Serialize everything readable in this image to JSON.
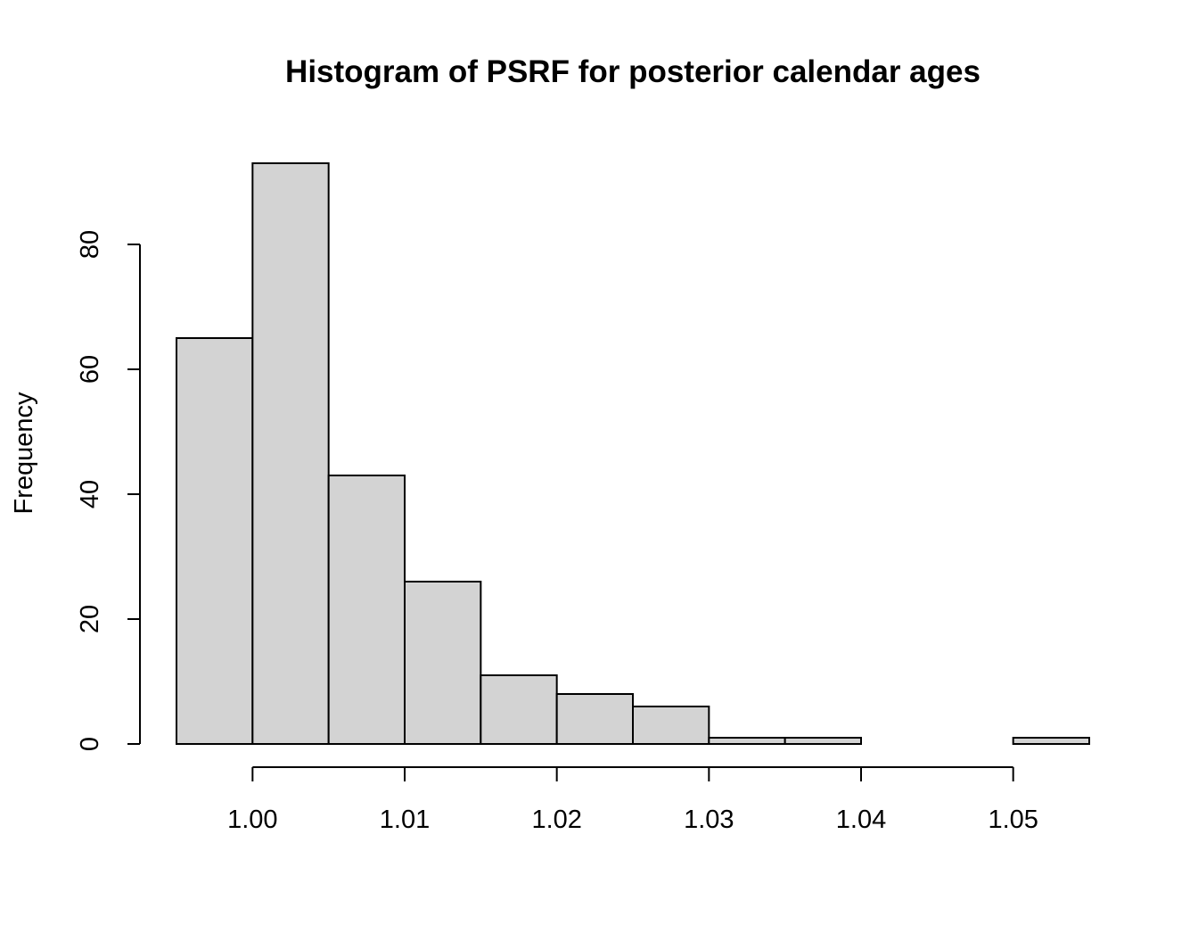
{
  "chart_data": {
    "type": "bar",
    "title": "Histogram of PSRF for posterior calendar ages",
    "xlabel": "",
    "ylabel": "Frequency",
    "bin_edges": [
      0.995,
      1.0,
      1.005,
      1.01,
      1.015,
      1.02,
      1.025,
      1.03,
      1.035,
      1.04,
      1.045,
      1.05,
      1.055
    ],
    "values": [
      65,
      93,
      43,
      26,
      11,
      8,
      6,
      1,
      1,
      0,
      0,
      1
    ],
    "xlim": [
      0.995,
      1.055
    ],
    "ylim": [
      0,
      93
    ],
    "x_ticks": [
      1.0,
      1.01,
      1.02,
      1.03,
      1.04,
      1.05
    ],
    "x_tick_labels": [
      "1.00",
      "1.01",
      "1.02",
      "1.03",
      "1.04",
      "1.05"
    ],
    "y_ticks": [
      0,
      20,
      40,
      60,
      80
    ],
    "y_tick_labels": [
      "0",
      "20",
      "40",
      "60",
      "80"
    ],
    "grid": false,
    "colors": {
      "bar_fill": "#d3d3d3",
      "bar_stroke": "#000000"
    }
  }
}
